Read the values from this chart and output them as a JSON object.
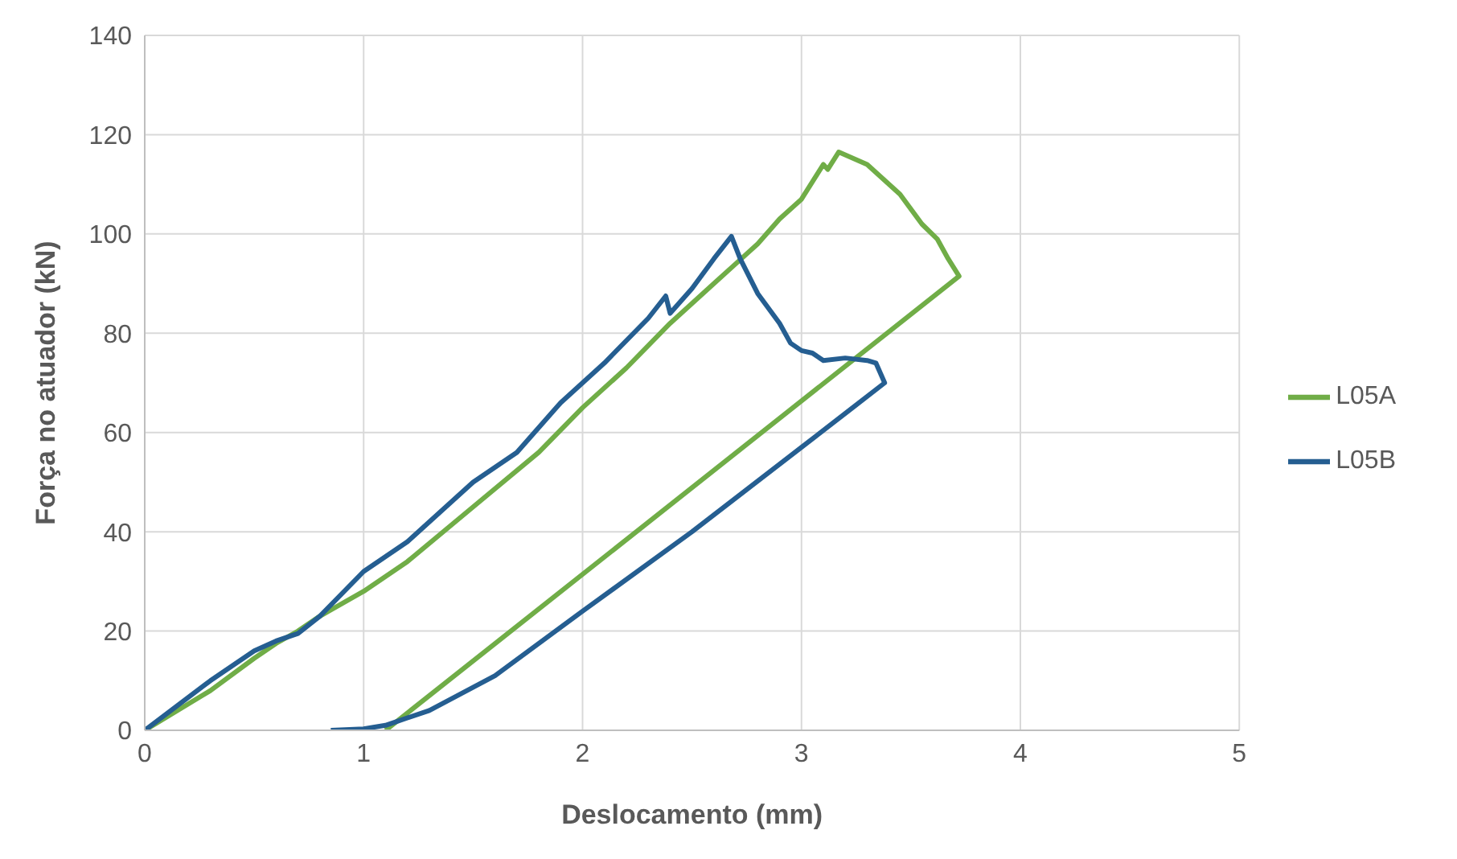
{
  "chart_data": {
    "type": "line",
    "xlabel": "Deslocamento (mm)",
    "ylabel": "Força no atuador (kN)",
    "xlim": [
      0,
      5
    ],
    "xticks": [
      0,
      1,
      2,
      3,
      4,
      5
    ],
    "ylim": [
      0,
      140
    ],
    "yticks": [
      0,
      20,
      40,
      60,
      80,
      100,
      120,
      140
    ],
    "grid": true,
    "legend": "right",
    "marker": "none",
    "line_style": "solid",
    "series": [
      {
        "name": "L05A",
        "color": "#70ad47",
        "x": [
          0,
          0.3,
          0.5,
          0.6,
          0.7,
          0.8,
          1,
          1.2,
          1.5,
          1.8,
          2,
          2.2,
          2.4,
          2.6,
          2.7,
          2.8,
          2.9,
          3,
          3.1,
          3.12,
          3.17,
          3.3,
          3.45,
          3.55,
          3.62,
          3.67,
          3.72,
          1.1
        ],
        "values": [
          0,
          8,
          14.5,
          17.5,
          20,
          23,
          28,
          34,
          45,
          56,
          65,
          73,
          82,
          90,
          94,
          98,
          103,
          107,
          114,
          113,
          116.5,
          114,
          108,
          102,
          99,
          95,
          91.5,
          0
        ]
      },
      {
        "name": "L05B",
        "color": "#255e91",
        "x": [
          0,
          0.3,
          0.5,
          0.6,
          0.7,
          0.8,
          1,
          1.2,
          1.5,
          1.7,
          1.9,
          2.1,
          2.3,
          2.38,
          2.4,
          2.5,
          2.6,
          2.68,
          2.72,
          2.8,
          2.9,
          2.95,
          3,
          3.05,
          3.1,
          3.2,
          3.3,
          3.34,
          3.38,
          3,
          2.5,
          2,
          1.6,
          1.3,
          1.1,
          1,
          0.85
        ],
        "values": [
          0,
          10,
          16,
          18,
          19.5,
          23,
          32,
          38,
          50,
          56,
          66,
          74,
          83,
          87.5,
          84,
          89,
          95,
          99.5,
          95,
          88,
          82,
          78,
          76.5,
          76,
          74.5,
          75,
          74.5,
          74,
          70,
          57,
          40,
          24,
          11,
          4,
          1,
          0.3,
          0
        ]
      }
    ]
  }
}
